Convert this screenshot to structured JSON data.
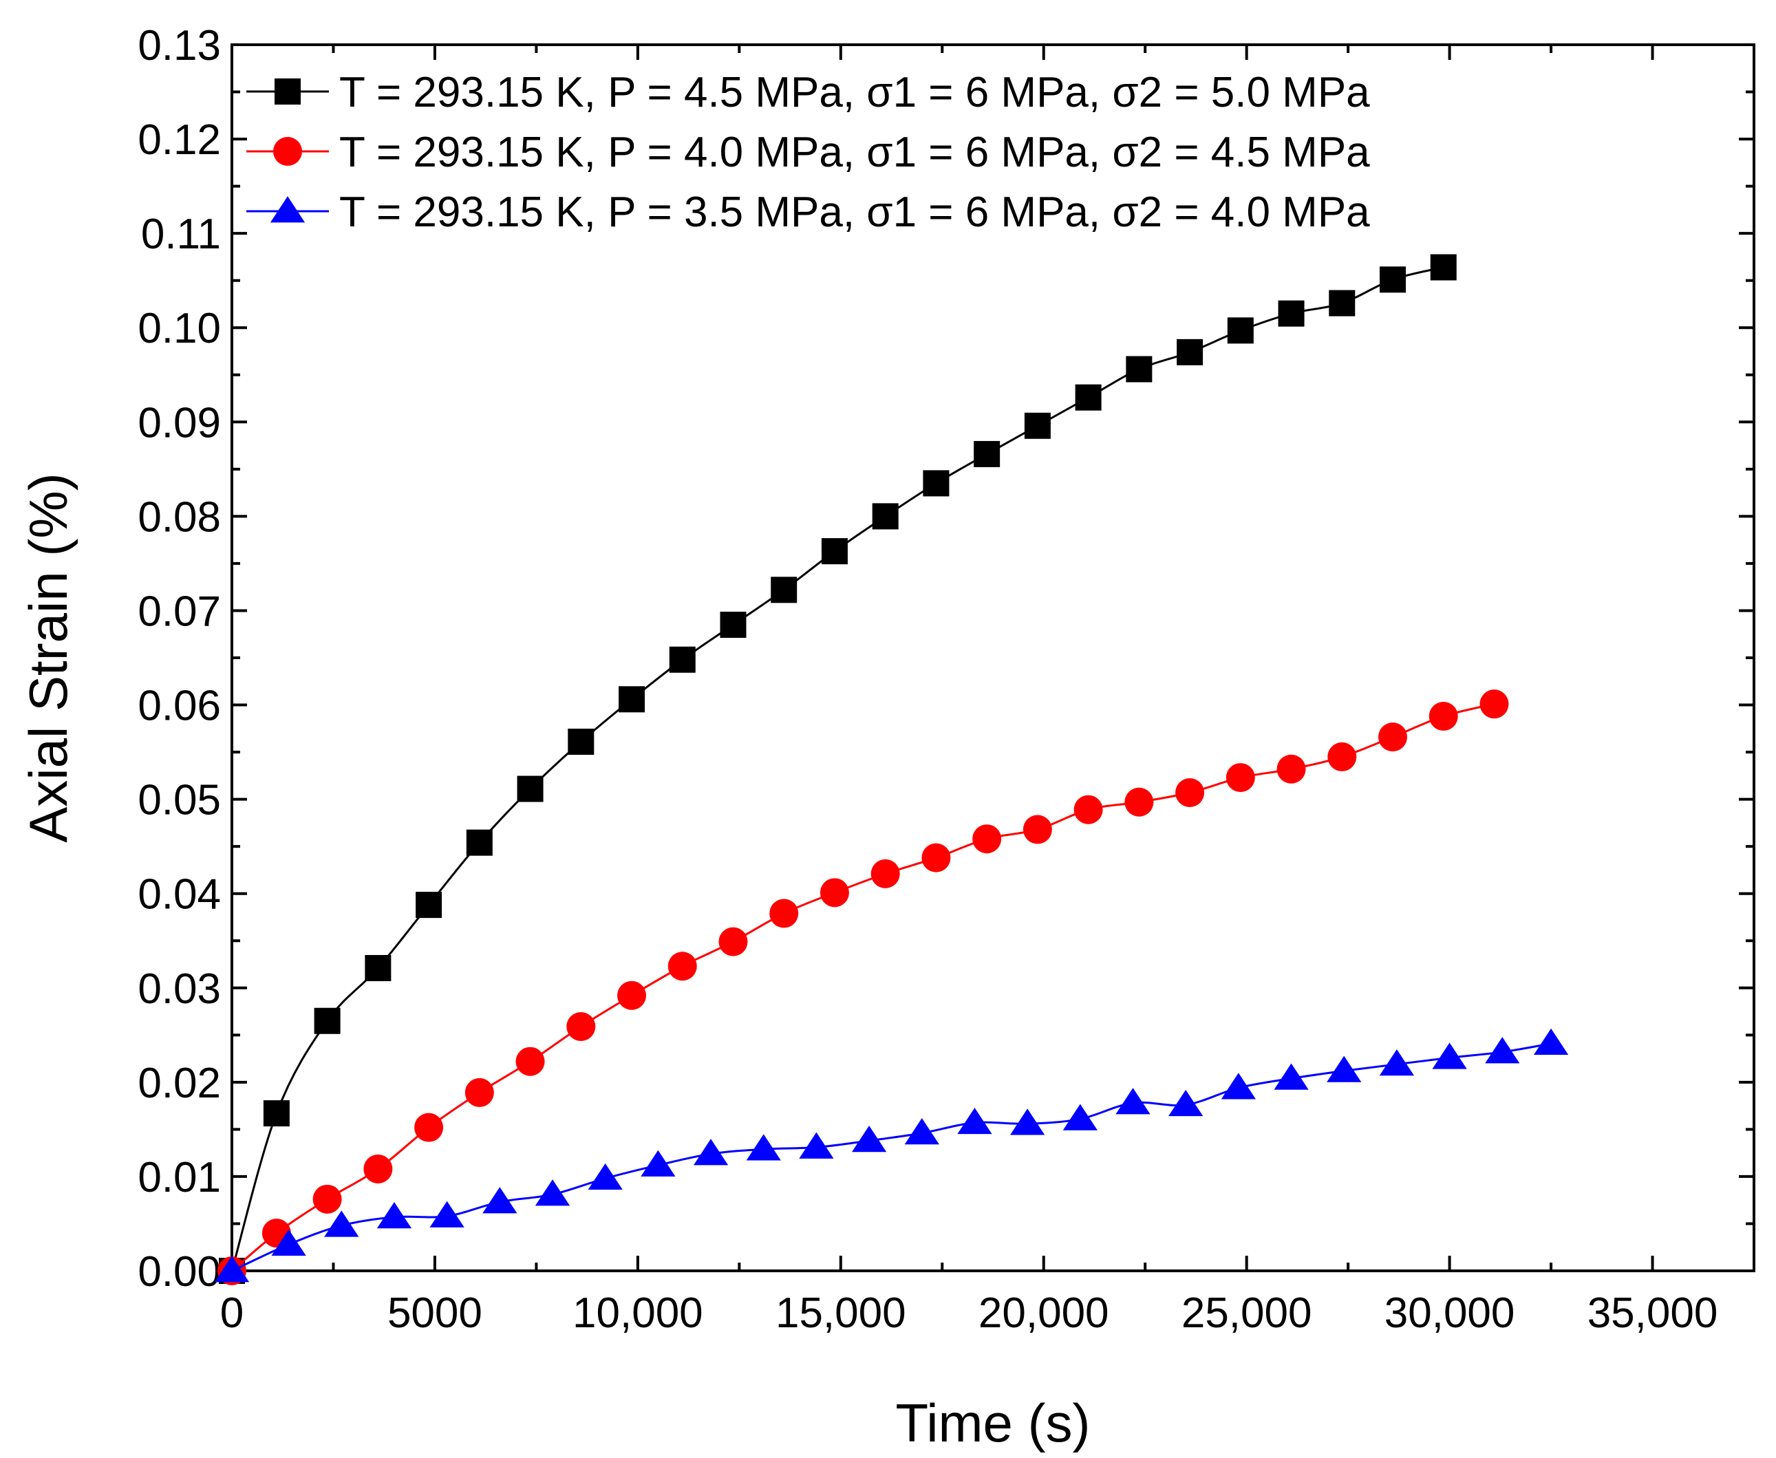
{
  "chart_data": {
    "type": "line",
    "title": "",
    "xlabel": "Time (s)",
    "ylabel": "Axial Strain (%)",
    "xlim": [
      0,
      37500
    ],
    "ylim": [
      0,
      0.13
    ],
    "x_ticks": [
      0,
      5000,
      10000,
      15000,
      20000,
      25000,
      30000,
      35000
    ],
    "x_tick_labels": [
      "0",
      "5000",
      "10,000",
      "15,000",
      "20,000",
      "25,000",
      "30,000",
      "35,000"
    ],
    "y_ticks": [
      0,
      0.01,
      0.02,
      0.03,
      0.04,
      0.05,
      0.06,
      0.07,
      0.08,
      0.09,
      0.1,
      0.11,
      0.12,
      0.13
    ],
    "y_tick_labels": [
      "0.00",
      "0.01",
      "0.02",
      "0.03",
      "0.04",
      "0.05",
      "0.06",
      "0.07",
      "0.08",
      "0.09",
      "0.10",
      "0.11",
      "0.12",
      "0.13"
    ],
    "grid": false,
    "legend_position": "top-left",
    "series": [
      {
        "name": "T = 293.15 K, P = 4.5 MPa, σ1 = 6 MPa, σ2 = 5.0 MPa",
        "color": "#000000",
        "marker": "square",
        "x": [
          0,
          1100,
          2350,
          3600,
          4850,
          6100,
          7350,
          8600,
          9850,
          11100,
          12350,
          13600,
          14850,
          16100,
          17350,
          18600,
          19850,
          21100,
          22350,
          23600,
          24850,
          26100,
          27350,
          28600,
          29850
        ],
        "y": [
          0.0,
          0.0167,
          0.0265,
          0.0321,
          0.0388,
          0.0454,
          0.0511,
          0.0561,
          0.0606,
          0.0648,
          0.0685,
          0.0722,
          0.0763,
          0.08,
          0.0835,
          0.0866,
          0.0896,
          0.0926,
          0.0956,
          0.0974,
          0.0997,
          0.1015,
          0.1026,
          0.1051,
          0.1064
        ]
      },
      {
        "name": "T = 293.15 K, P = 4.0 MPa, σ1 = 6 MPa, σ2 = 4.5 MPa",
        "color": "#ff0000",
        "marker": "circle",
        "x": [
          0,
          1100,
          2350,
          3600,
          4850,
          6100,
          7350,
          8600,
          9850,
          11100,
          12350,
          13600,
          14850,
          16100,
          17350,
          18600,
          19850,
          21100,
          22350,
          23600,
          24850,
          26100,
          27350,
          28600,
          29850,
          31100
        ],
        "y": [
          0.0,
          0.004,
          0.0076,
          0.0108,
          0.0152,
          0.0189,
          0.0222,
          0.0259,
          0.0292,
          0.0323,
          0.0349,
          0.0379,
          0.0401,
          0.0421,
          0.0438,
          0.0458,
          0.0468,
          0.0489,
          0.0497,
          0.0507,
          0.0523,
          0.0532,
          0.0545,
          0.0566,
          0.0588,
          0.0601
        ]
      },
      {
        "name": "T = 293.15 K, P = 3.5 MPa, σ1 = 6 MPa, σ2 = 4.0 MPa",
        "color": "#0000ff",
        "marker": "triangle",
        "x": [
          0,
          1400,
          2700,
          4000,
          5300,
          6600,
          7900,
          9200,
          10500,
          11800,
          13100,
          14400,
          15700,
          17000,
          18300,
          19600,
          20900,
          22200,
          23500,
          24800,
          26100,
          27400,
          28700,
          30000,
          31300,
          32500
        ],
        "y": [
          0.0,
          0.0028,
          0.0048,
          0.0057,
          0.0058,
          0.0073,
          0.0081,
          0.0098,
          0.0112,
          0.0124,
          0.0129,
          0.0131,
          0.0138,
          0.0146,
          0.0157,
          0.0156,
          0.0161,
          0.0178,
          0.0176,
          0.0194,
          0.0204,
          0.0212,
          0.0219,
          0.0226,
          0.0232,
          0.0241
        ]
      }
    ]
  }
}
